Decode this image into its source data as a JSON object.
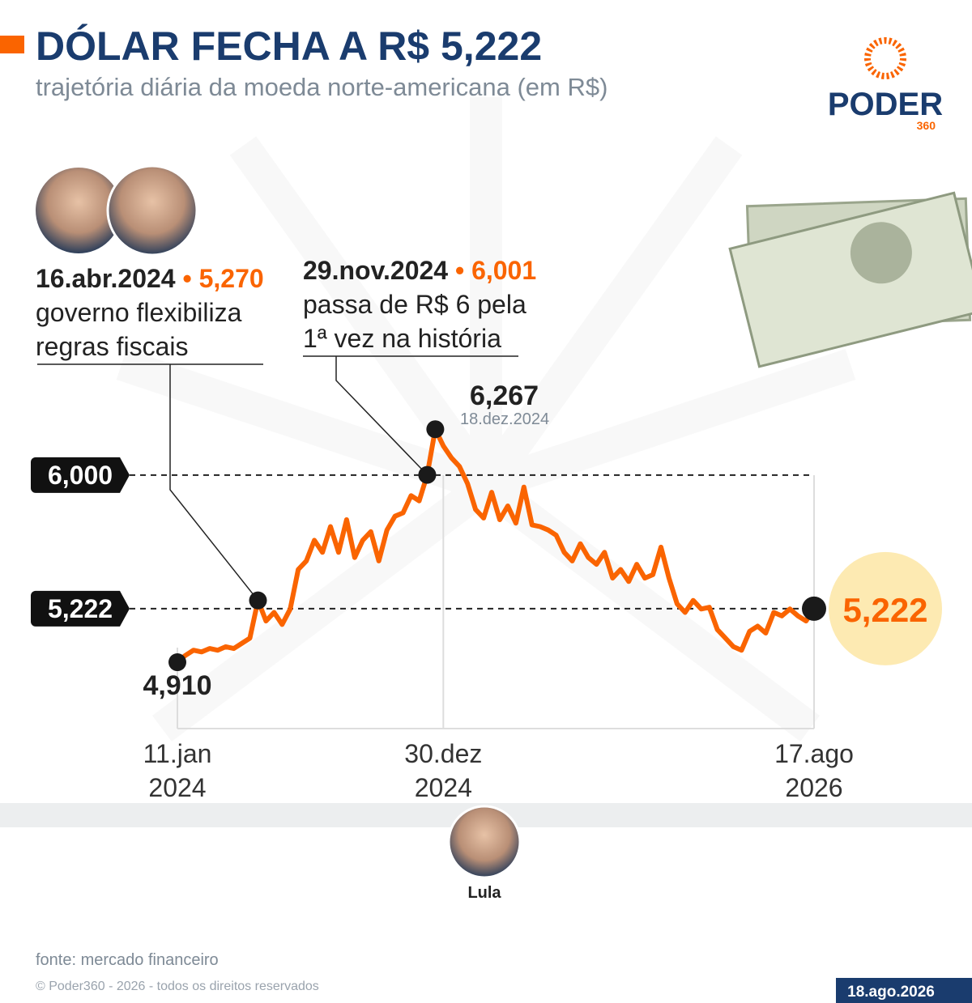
{
  "header": {
    "title": "DÓLAR FECHA A R$ 5,222",
    "subtitle": "trajetória diária da moeda norte-americana (em R$)",
    "logo": "PODER",
    "logo_sub": "360"
  },
  "chart_data": {
    "type": "line",
    "series": [
      {
        "name": "dólar",
        "color": "#fa6400",
        "values": [
          4.91,
          4.95,
          4.98,
          4.97,
          4.99,
          4.98,
          5.0,
          4.99,
          5.02,
          5.05,
          5.27,
          5.15,
          5.2,
          5.13,
          5.22,
          5.45,
          5.5,
          5.62,
          5.55,
          5.7,
          5.55,
          5.74,
          5.52,
          5.62,
          5.67,
          5.5,
          5.68,
          5.76,
          5.78,
          5.88,
          5.85,
          6.001,
          6.267,
          6.17,
          6.1,
          6.05,
          5.95,
          5.8,
          5.75,
          5.9,
          5.74,
          5.82,
          5.72,
          5.93,
          5.71,
          5.7,
          5.68,
          5.65,
          5.55,
          5.5,
          5.6,
          5.52,
          5.48,
          5.55,
          5.4,
          5.45,
          5.38,
          5.48,
          5.4,
          5.42,
          5.58,
          5.4,
          5.25,
          5.2,
          5.27,
          5.22,
          5.23,
          5.1,
          5.05,
          5.0,
          4.98,
          5.09,
          5.12,
          5.08,
          5.2,
          5.18,
          5.22,
          5.18,
          5.15,
          5.222
        ],
        "value_labels": [
          "4,910",
          null,
          null,
          null,
          null,
          null,
          null,
          null,
          null,
          null,
          "5,270",
          null,
          null,
          null,
          null,
          null,
          null,
          null,
          null,
          null,
          null,
          null,
          null,
          null,
          null,
          null,
          null,
          null,
          null,
          null,
          null,
          "6,001",
          "6,267",
          null,
          null,
          null,
          null,
          null,
          null,
          null,
          null,
          null,
          null,
          null,
          null,
          null,
          null,
          null,
          null,
          null,
          null,
          null,
          null,
          null,
          null,
          null,
          null,
          null,
          null,
          null,
          null,
          null,
          null,
          null,
          null,
          null,
          null,
          null,
          null,
          null,
          null,
          null,
          null,
          null,
          null,
          null,
          null,
          null,
          null,
          "5,222"
        ]
      }
    ],
    "xlim": [
      0,
      79
    ],
    "xticks": [
      {
        "value": 0,
        "label": [
          "11.jan",
          "2024"
        ]
      },
      {
        "value": 33,
        "label": [
          "30.dez",
          "2024"
        ]
      },
      {
        "value": 79,
        "label": [
          "17.ago",
          "2026"
        ]
      }
    ],
    "ylim": [
      4.5,
      6.4
    ],
    "yticks": [
      {
        "value": 6.0,
        "label": "6,000"
      },
      {
        "value": 5.222,
        "label": "5,222"
      }
    ],
    "annotations": [
      {
        "date": "16.abr.2024",
        "lines": [
          "governo flexibiliza",
          "regras fiscais"
        ]
      },
      {
        "date": "29.nov.2024",
        "lines": [
          "passa de R$ 6 pela",
          "1ª vez na história"
        ]
      }
    ],
    "peak_date": "18.dez.2024"
  },
  "person": "Lula",
  "footer": {
    "source": "fonte: mercado financeiro",
    "copyright": "© Poder360 - 2026 - todos os direitos reservados",
    "date": "18.ago.2026"
  }
}
